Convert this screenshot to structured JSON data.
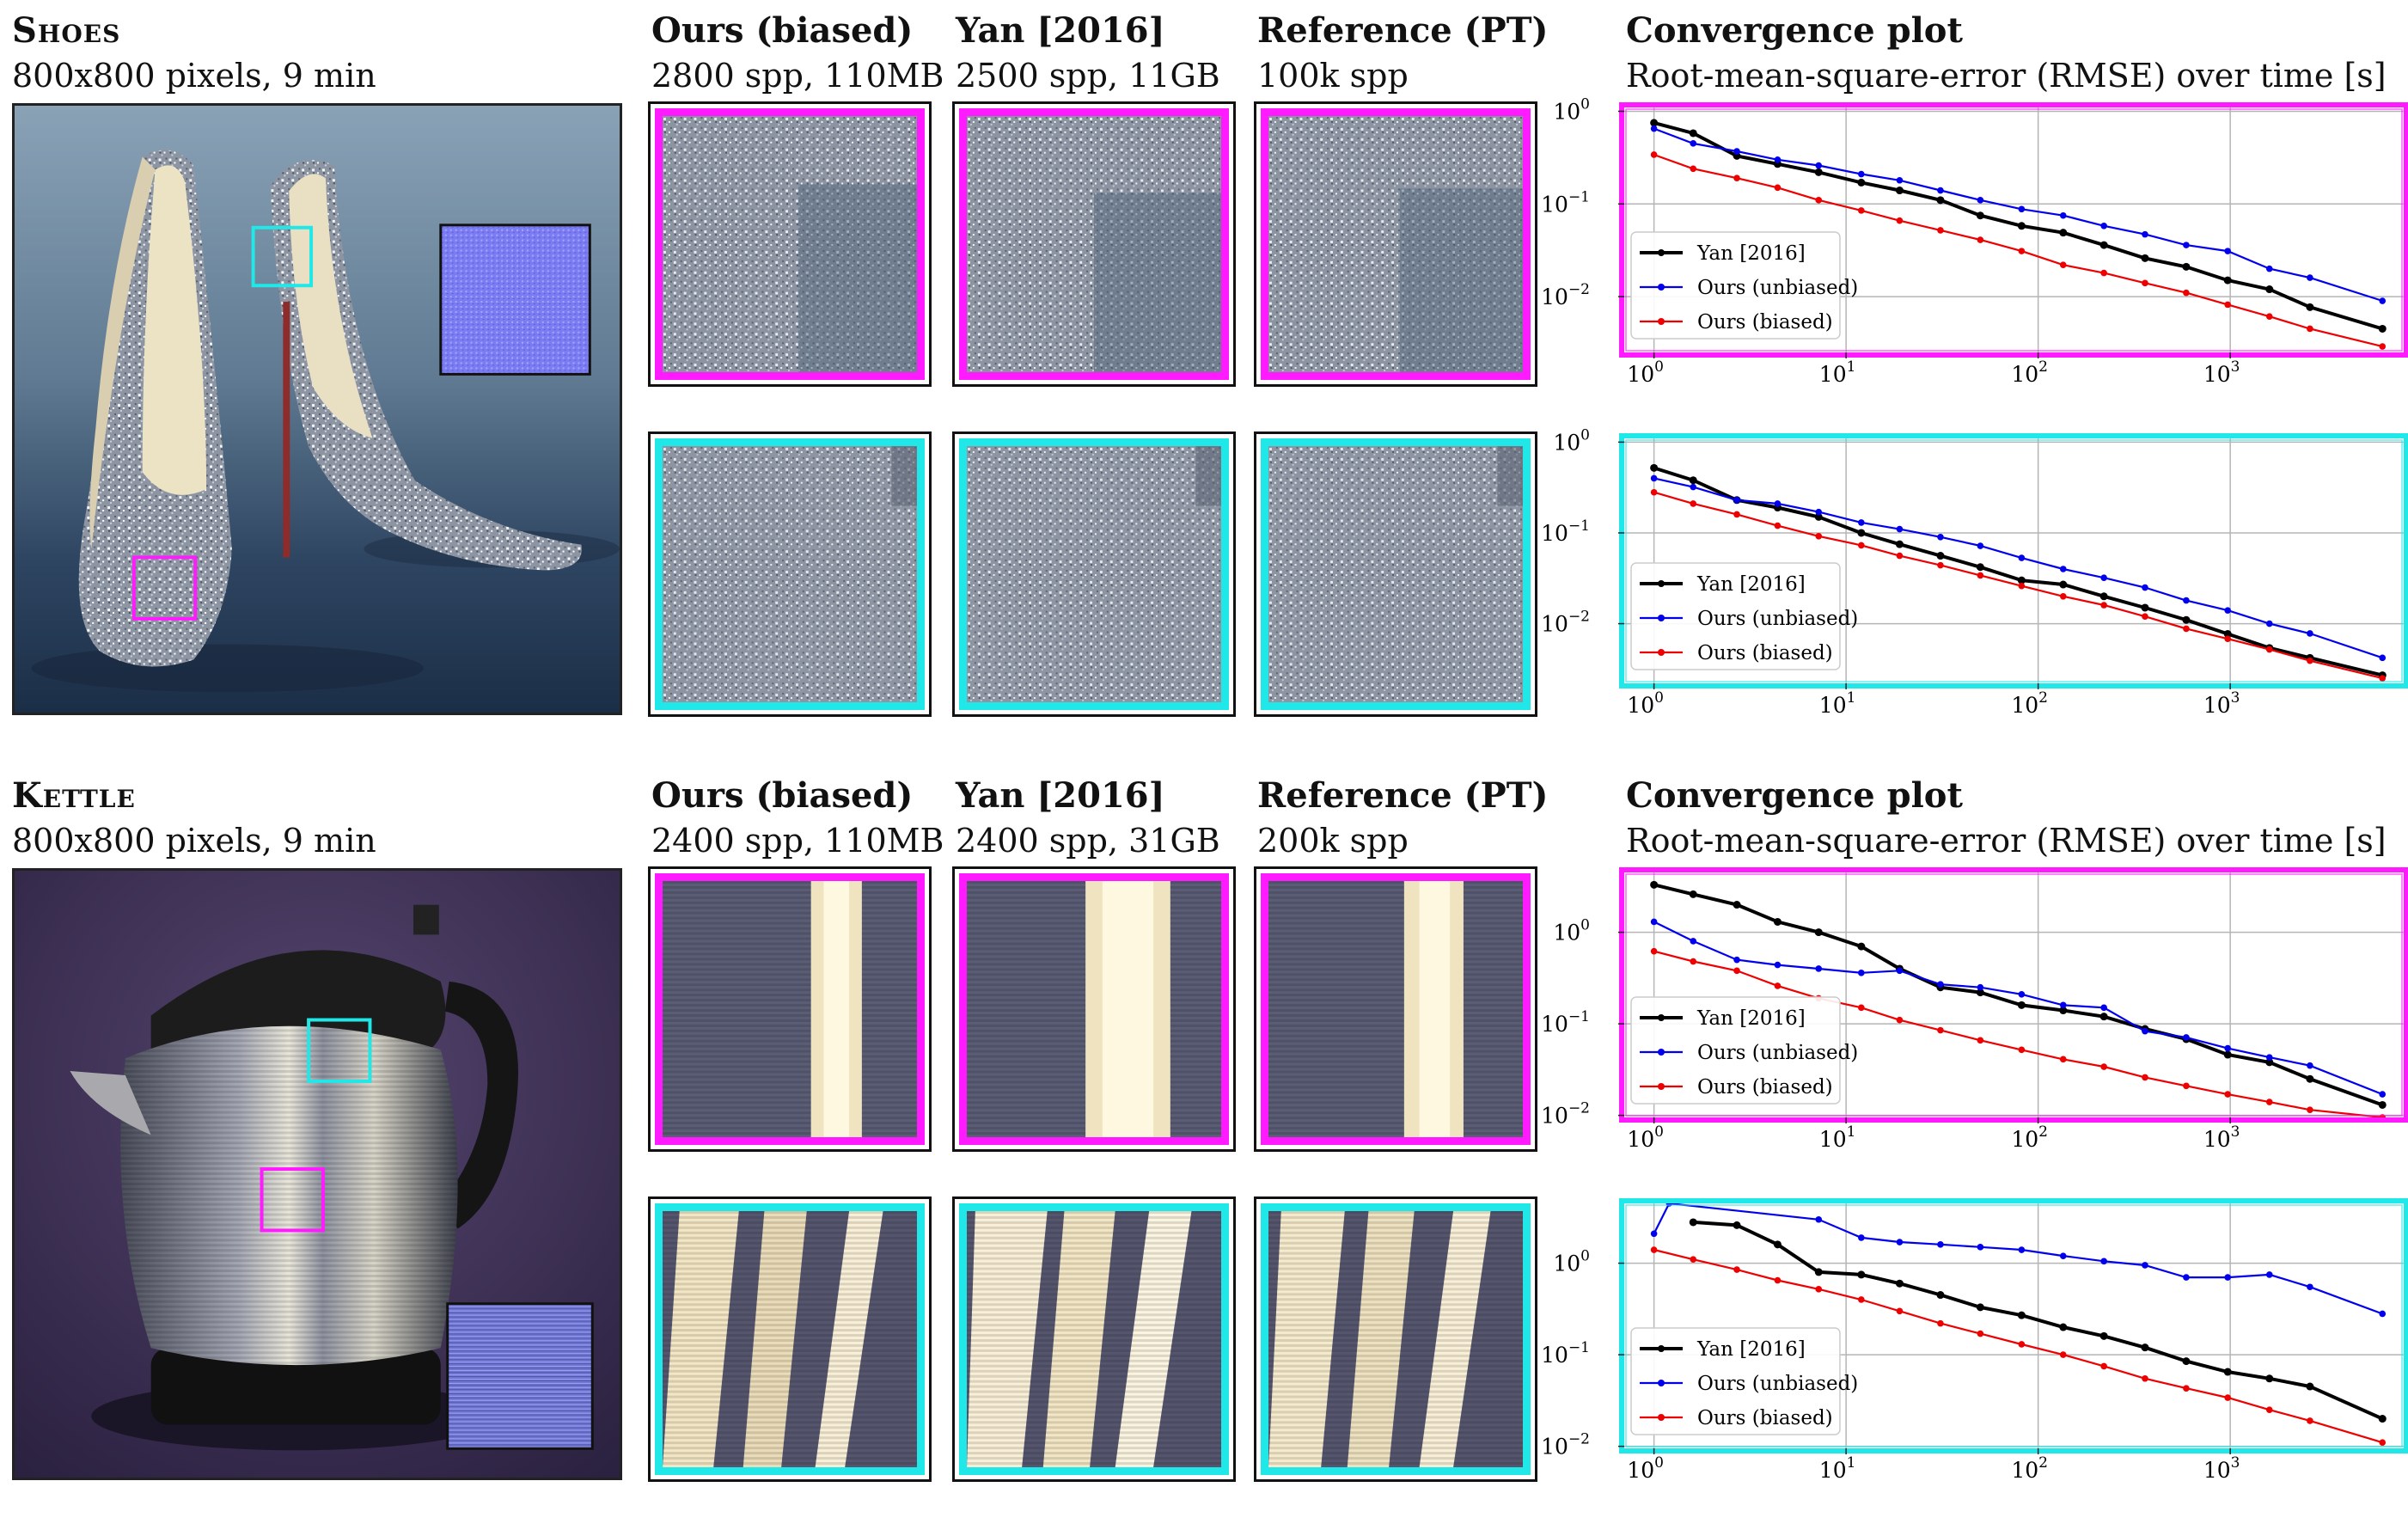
{
  "colors": {
    "magenta": "#ff1aff",
    "cyan": "#21e8e8",
    "yan": "#000000",
    "ours_unbiased": "#0000ee",
    "ours_biased": "#ee0000"
  },
  "scenes": [
    {
      "name": "Shoes",
      "subtitle": "800x800 pixels, 9 min",
      "columns": [
        {
          "title": "Ours (biased)",
          "sub": "2800 spp, 110MB"
        },
        {
          "title": "Yan [2016]",
          "sub": "2500 spp, 11GB"
        },
        {
          "title": "Reference (PT)",
          "sub": "100k spp"
        }
      ],
      "plot_title": "Convergence plot",
      "plot_subtitle": "Root-mean-square-error (RMSE) over time [s]"
    },
    {
      "name": "Kettle",
      "subtitle": "800x800 pixels, 9 min",
      "columns": [
        {
          "title": "Ours (biased)",
          "sub": "2400 spp, 110MB"
        },
        {
          "title": "Yan [2016]",
          "sub": "2400 spp, 31GB"
        },
        {
          "title": "Reference (PT)",
          "sub": "200k spp"
        }
      ],
      "plot_title": "Convergence plot",
      "plot_subtitle": "Root-mean-square-error (RMSE) over time [s]"
    }
  ],
  "chart_data": [
    {
      "type": "line",
      "scene": "Shoes",
      "crop": "magenta",
      "log_x": true,
      "log_y": true,
      "xlim": [
        0.7,
        8000
      ],
      "ylim": [
        0.0025,
        1.1
      ],
      "grid": true,
      "legend": "lower-left",
      "x_ticks": [
        {
          "base": "10",
          "exp": "0"
        },
        {
          "base": "10",
          "exp": "1"
        },
        {
          "base": "10",
          "exp": "2"
        },
        {
          "base": "10",
          "exp": "3"
        }
      ],
      "y_ticks": [
        {
          "base": "10",
          "exp": "0"
        },
        {
          "base": "10",
          "exp": "−1"
        },
        {
          "base": "10",
          "exp": "−2"
        }
      ],
      "series": [
        {
          "name": "Yan [2016]",
          "x": [
            1,
            1.6,
            2.7,
            4.4,
            7.2,
            12,
            19,
            31,
            50,
            82,
            135,
            220,
            360,
            590,
            970,
            1600,
            2600,
            6200
          ],
          "y": [
            0.75,
            0.58,
            0.33,
            0.27,
            0.22,
            0.17,
            0.14,
            0.11,
            0.075,
            0.058,
            0.049,
            0.036,
            0.026,
            0.021,
            0.015,
            0.012,
            0.0077,
            0.0045
          ]
        },
        {
          "name": "Ours (unbiased)",
          "x": [
            1,
            1.6,
            2.7,
            4.4,
            7.2,
            12,
            19,
            31,
            50,
            82,
            135,
            220,
            360,
            590,
            970,
            1600,
            2600,
            6200
          ],
          "y": [
            0.65,
            0.45,
            0.37,
            0.3,
            0.26,
            0.21,
            0.18,
            0.14,
            0.11,
            0.088,
            0.075,
            0.058,
            0.047,
            0.036,
            0.031,
            0.02,
            0.016,
            0.009
          ]
        },
        {
          "name": "Ours (biased)",
          "x": [
            1,
            1.6,
            2.7,
            4.4,
            7.2,
            12,
            19,
            31,
            50,
            82,
            135,
            220,
            360,
            590,
            970,
            1600,
            2600,
            6200
          ],
          "y": [
            0.34,
            0.24,
            0.19,
            0.15,
            0.11,
            0.085,
            0.066,
            0.052,
            0.041,
            0.031,
            0.022,
            0.018,
            0.014,
            0.011,
            0.0082,
            0.0061,
            0.0045,
            0.0029
          ]
        }
      ]
    },
    {
      "type": "line",
      "scene": "Shoes",
      "crop": "cyan",
      "log_x": true,
      "log_y": true,
      "xlim": [
        0.7,
        8000
      ],
      "ylim": [
        0.0022,
        1.1
      ],
      "grid": true,
      "legend": "lower-left",
      "x_ticks": [
        {
          "base": "10",
          "exp": "0"
        },
        {
          "base": "10",
          "exp": "1"
        },
        {
          "base": "10",
          "exp": "2"
        },
        {
          "base": "10",
          "exp": "3"
        }
      ],
      "y_ticks": [
        {
          "base": "10",
          "exp": "0"
        },
        {
          "base": "10",
          "exp": "−1"
        },
        {
          "base": "10",
          "exp": "−2"
        }
      ],
      "series": [
        {
          "name": "Yan [2016]",
          "x": [
            1,
            1.6,
            2.7,
            4.4,
            7.2,
            12,
            19,
            31,
            50,
            82,
            135,
            220,
            360,
            590,
            970,
            1600,
            2600,
            6200
          ],
          "y": [
            0.52,
            0.38,
            0.23,
            0.19,
            0.15,
            0.1,
            0.075,
            0.056,
            0.042,
            0.03,
            0.027,
            0.02,
            0.015,
            0.011,
            0.0077,
            0.0054,
            0.0042,
            0.0027
          ]
        },
        {
          "name": "Ours (unbiased)",
          "x": [
            1,
            1.6,
            2.7,
            4.4,
            7.2,
            12,
            19,
            31,
            50,
            82,
            135,
            220,
            360,
            590,
            970,
            1600,
            2600,
            6200
          ],
          "y": [
            0.4,
            0.32,
            0.23,
            0.21,
            0.17,
            0.13,
            0.11,
            0.09,
            0.072,
            0.053,
            0.04,
            0.032,
            0.025,
            0.018,
            0.014,
            0.01,
            0.0078,
            0.0042
          ]
        },
        {
          "name": "Ours (biased)",
          "x": [
            1,
            1.6,
            2.7,
            4.4,
            7.2,
            12,
            19,
            31,
            50,
            82,
            135,
            220,
            360,
            590,
            970,
            1600,
            2600,
            6200
          ],
          "y": [
            0.28,
            0.21,
            0.16,
            0.12,
            0.092,
            0.073,
            0.056,
            0.044,
            0.034,
            0.026,
            0.02,
            0.016,
            0.012,
            0.0088,
            0.0068,
            0.0052,
            0.0039,
            0.0025
          ]
        }
      ]
    },
    {
      "type": "line",
      "scene": "Kettle",
      "crop": "magenta",
      "log_x": true,
      "log_y": true,
      "xlim": [
        0.7,
        8000
      ],
      "ylim": [
        0.0095,
        4.5
      ],
      "grid": true,
      "legend": "lower-left",
      "x_ticks": [
        {
          "base": "10",
          "exp": "0"
        },
        {
          "base": "10",
          "exp": "1"
        },
        {
          "base": "10",
          "exp": "2"
        },
        {
          "base": "10",
          "exp": "3"
        }
      ],
      "y_ticks": [
        {
          "base": "10",
          "exp": "0"
        },
        {
          "base": "10",
          "exp": "−1"
        },
        {
          "base": "10",
          "exp": "−2"
        }
      ],
      "series": [
        {
          "name": "Yan [2016]",
          "x": [
            1,
            1.6,
            2.7,
            4.4,
            7.2,
            12,
            19,
            31,
            50,
            82,
            135,
            220,
            360,
            590,
            970,
            1600,
            2600,
            6200
          ],
          "y": [
            3.3,
            2.6,
            2.0,
            1.3,
            1.0,
            0.7,
            0.4,
            0.25,
            0.22,
            0.16,
            0.14,
            0.12,
            0.088,
            0.068,
            0.046,
            0.038,
            0.025,
            0.013
          ]
        },
        {
          "name": "Ours (unbiased)",
          "x": [
            1,
            1.6,
            2.7,
            4.4,
            7.2,
            12,
            19,
            31,
            50,
            82,
            135,
            220,
            360,
            590,
            970,
            1600,
            2600,
            6200
          ],
          "y": [
            1.3,
            0.8,
            0.5,
            0.44,
            0.4,
            0.36,
            0.38,
            0.27,
            0.25,
            0.21,
            0.16,
            0.15,
            0.083,
            0.071,
            0.054,
            0.043,
            0.035,
            0.017
          ]
        },
        {
          "name": "Ours (biased)",
          "x": [
            1,
            1.6,
            2.7,
            4.4,
            7.2,
            12,
            19,
            31,
            50,
            82,
            135,
            220,
            360,
            590,
            970,
            1600,
            2600,
            6200
          ],
          "y": [
            0.62,
            0.48,
            0.38,
            0.26,
            0.19,
            0.15,
            0.11,
            0.085,
            0.066,
            0.052,
            0.041,
            0.034,
            0.026,
            0.021,
            0.017,
            0.014,
            0.0115,
            0.0095
          ]
        }
      ]
    },
    {
      "type": "line",
      "scene": "Kettle",
      "crop": "cyan",
      "log_x": true,
      "log_y": true,
      "xlim": [
        0.7,
        8000
      ],
      "ylim": [
        0.0095,
        4.5
      ],
      "grid": true,
      "legend": "lower-left",
      "x_ticks": [
        {
          "base": "10",
          "exp": "0"
        },
        {
          "base": "10",
          "exp": "1"
        },
        {
          "base": "10",
          "exp": "2"
        },
        {
          "base": "10",
          "exp": "3"
        }
      ],
      "y_ticks": [
        {
          "base": "10",
          "exp": "0"
        },
        {
          "base": "10",
          "exp": "−1"
        },
        {
          "base": "10",
          "exp": "−2"
        }
      ],
      "series": [
        {
          "name": "Yan [2016]",
          "x": [
            1.6,
            2.7,
            4.4,
            7.2,
            12,
            19,
            31,
            50,
            82,
            135,
            220,
            360,
            590,
            970,
            1600,
            2600,
            6200
          ],
          "y": [
            2.8,
            2.6,
            1.6,
            0.8,
            0.75,
            0.6,
            0.45,
            0.33,
            0.27,
            0.2,
            0.16,
            0.12,
            0.085,
            0.065,
            0.055,
            0.045,
            0.02
          ]
        },
        {
          "name": "Ours (unbiased)",
          "x": [
            1,
            1.2,
            7.2,
            12,
            19,
            31,
            50,
            82,
            135,
            220,
            360,
            590,
            970,
            1600,
            2600,
            6200
          ],
          "y": [
            2.1,
            4.5,
            3.0,
            1.9,
            1.7,
            1.6,
            1.5,
            1.4,
            1.2,
            1.05,
            0.95,
            0.7,
            0.7,
            0.75,
            0.55,
            0.28
          ]
        },
        {
          "name": "Ours (biased)",
          "x": [
            1,
            1.6,
            2.7,
            4.4,
            7.2,
            12,
            19,
            31,
            50,
            82,
            135,
            220,
            360,
            590,
            970,
            1600,
            2600,
            6200
          ],
          "y": [
            1.4,
            1.1,
            0.85,
            0.65,
            0.52,
            0.4,
            0.3,
            0.22,
            0.17,
            0.13,
            0.1,
            0.075,
            0.055,
            0.043,
            0.034,
            0.025,
            0.019,
            0.011
          ]
        }
      ]
    }
  ]
}
